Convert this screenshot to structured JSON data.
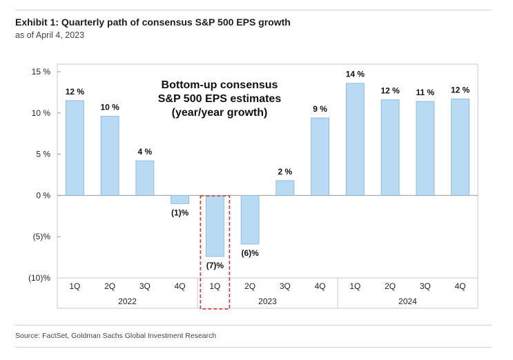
{
  "header": {
    "title": "Exhibit 1: Quarterly path of consensus S&P 500 EPS growth",
    "subtitle": "as of April 4, 2023"
  },
  "footer": {
    "source": "Source: FactSet, Goldman Sachs Global Investment Research"
  },
  "chart_data": {
    "type": "bar",
    "categories": [
      "1Q",
      "2Q",
      "3Q",
      "4Q",
      "1Q",
      "2Q",
      "3Q",
      "4Q",
      "1Q",
      "2Q",
      "3Q",
      "4Q"
    ],
    "groups": [
      {
        "label": "2022",
        "count": 4
      },
      {
        "label": "2023",
        "count": 4
      },
      {
        "label": "2024",
        "count": 4
      }
    ],
    "values": [
      11.5,
      9.6,
      4.2,
      -1.0,
      -7.4,
      -5.9,
      1.8,
      9.4,
      13.6,
      11.6,
      11.4,
      11.7
    ],
    "data_labels": [
      "12 %",
      "10 %",
      "4 %",
      "(1)%",
      "(7)%",
      "(6)%",
      "2 %",
      "9 %",
      "14 %",
      "12 %",
      "11 %",
      "12 %"
    ],
    "ylim": [
      -10,
      15
    ],
    "yticks": [
      15,
      10,
      5,
      0,
      -5,
      -10
    ],
    "ytick_labels": [
      "15 %",
      "10 %",
      "5 %",
      "0 %",
      "(5)%",
      "(10)%"
    ],
    "annotation": [
      "Bottom-up consensus",
      "S&P 500 EPS estimates",
      "(year/year growth)"
    ],
    "highlight_index": 4,
    "bar_color": "#b8daf3",
    "bar_edge_color": "#7fb3dc",
    "highlight_color": "#e03030",
    "xlabel": "",
    "ylabel": "",
    "grid": false
  }
}
